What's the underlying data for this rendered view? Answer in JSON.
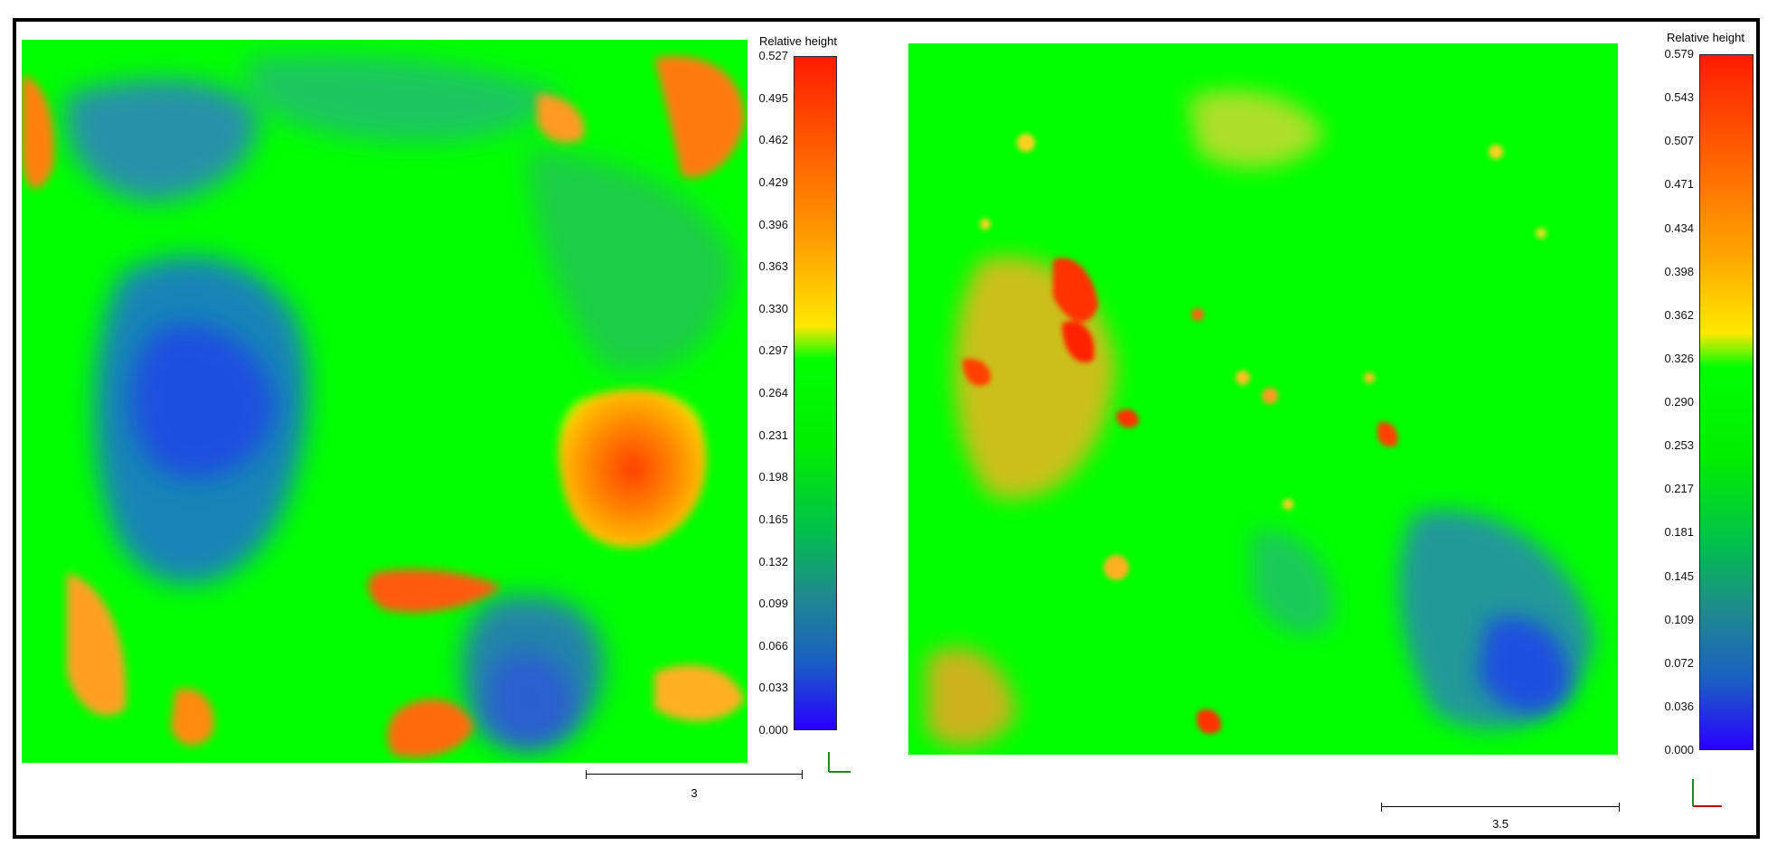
{
  "panels": [
    {
      "colorbar": {
        "title": "Relative height",
        "ticks": [
          "0.527",
          "0.495",
          "0.462",
          "0.429",
          "0.396",
          "0.363",
          "0.330",
          "0.297",
          "0.264",
          "0.231",
          "0.198",
          "0.165",
          "0.132",
          "0.099",
          "0.066",
          "0.033",
          "0.000"
        ]
      },
      "scale_label": "3"
    },
    {
      "colorbar": {
        "title": "Relative height",
        "ticks": [
          "0.579",
          "0.543",
          "0.507",
          "0.471",
          "0.434",
          "0.398",
          "0.362",
          "0.326",
          "0.290",
          "0.253",
          "0.217",
          "0.181",
          "0.145",
          "0.109",
          "0.072",
          "0.036",
          "0.000"
        ]
      },
      "scale_label": "3.5"
    }
  ],
  "colors": {
    "background_green": "#00ff00",
    "low_blue": "#2a00ff",
    "high_red": "#ff1c00"
  }
}
